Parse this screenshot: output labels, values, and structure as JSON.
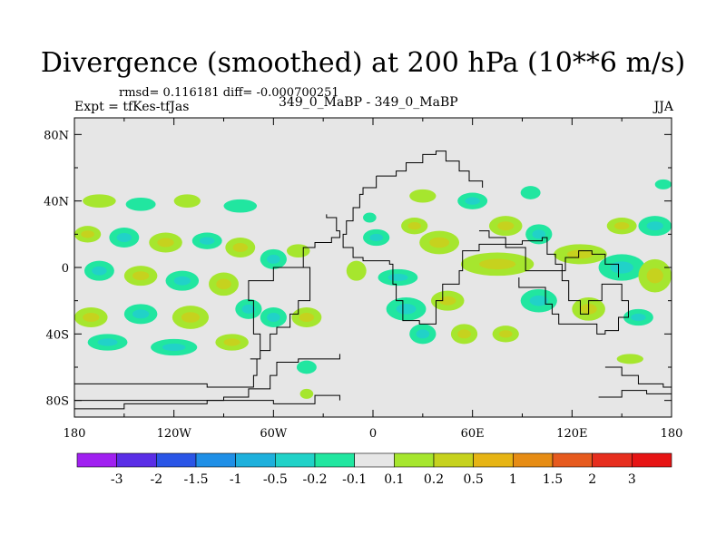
{
  "header": {
    "title": "Divergence (smoothed) at 200 hPa (10**6 m/s)",
    "stats": "rmsd= 0.116181 diff= -0.000700251",
    "expt": "Expt = tfKes-tfJas",
    "cases": "349_0_MaBP - 349_0_MaBP",
    "season": "JJA"
  },
  "chart_data": {
    "type": "heatmap",
    "title": "Divergence (smoothed) at 200 hPa (10**6 m/s)",
    "projection": "cylindrical equidistant",
    "xlim": [
      -180,
      180
    ],
    "ylim": [
      -90,
      90
    ],
    "x_ticks": [
      {
        "value": -180,
        "label": "180"
      },
      {
        "value": -120,
        "label": "120W"
      },
      {
        "value": -60,
        "label": "60W"
      },
      {
        "value": 0,
        "label": "0"
      },
      {
        "value": 60,
        "label": "60E"
      },
      {
        "value": 120,
        "label": "120E"
      },
      {
        "value": 180,
        "label": "180"
      }
    ],
    "y_ticks": [
      {
        "value": 80,
        "label": "80N"
      },
      {
        "value": 40,
        "label": "40N"
      },
      {
        "value": 0,
        "label": "0"
      },
      {
        "value": -40,
        "label": "40S"
      },
      {
        "value": -80,
        "label": "80S"
      }
    ],
    "background_color": "#e6e6e6",
    "colorbar": {
      "orientation": "horizontal",
      "labels": [
        "-3",
        "-2",
        "-1.5",
        "-1",
        "-0.5",
        "-0.2",
        "-0.1",
        "0.1",
        "0.2",
        "0.5",
        "1",
        "1.5",
        "2",
        "3"
      ],
      "colors": [
        "#a020f0",
        "#5a2ee6",
        "#2a55e6",
        "#1f8fe6",
        "#1eb0dc",
        "#21d2c8",
        "#21e6a0",
        "#e6e6e6",
        "#a6e62e",
        "#c6d21e",
        "#e6b414",
        "#e68c14",
        "#e65a1e",
        "#e62e1e",
        "#e61414"
      ]
    },
    "features": [
      {
        "lon": -165,
        "lat": 40,
        "rx": 10,
        "ry": 4,
        "level": 1
      },
      {
        "lon": -140,
        "lat": 38,
        "rx": 9,
        "ry": 4,
        "level": 0
      },
      {
        "lon": -112,
        "lat": 40,
        "rx": 8,
        "ry": 4,
        "level": 1
      },
      {
        "lon": -80,
        "lat": 37,
        "rx": 10,
        "ry": 4,
        "level": 0
      },
      {
        "lon": -172,
        "lat": 20,
        "rx": 8,
        "ry": 5,
        "level": 1
      },
      {
        "lon": -150,
        "lat": 18,
        "rx": 9,
        "ry": 6,
        "level": 0
      },
      {
        "lon": -125,
        "lat": 15,
        "rx": 10,
        "ry": 6,
        "level": 1
      },
      {
        "lon": -100,
        "lat": 16,
        "rx": 9,
        "ry": 5,
        "level": 0
      },
      {
        "lon": -80,
        "lat": 12,
        "rx": 9,
        "ry": 6,
        "level": 1
      },
      {
        "lon": -60,
        "lat": 5,
        "rx": 8,
        "ry": 6,
        "level": 0
      },
      {
        "lon": -45,
        "lat": 10,
        "rx": 7,
        "ry": 4,
        "level": 1
      },
      {
        "lon": -165,
        "lat": -2,
        "rx": 9,
        "ry": 6,
        "level": 0
      },
      {
        "lon": -140,
        "lat": -5,
        "rx": 10,
        "ry": 6,
        "level": 1
      },
      {
        "lon": -115,
        "lat": -8,
        "rx": 10,
        "ry": 6,
        "level": 0
      },
      {
        "lon": -90,
        "lat": -10,
        "rx": 9,
        "ry": 7,
        "level": 1
      },
      {
        "lon": -75,
        "lat": -25,
        "rx": 8,
        "ry": 6,
        "level": 0
      },
      {
        "lon": -170,
        "lat": -30,
        "rx": 10,
        "ry": 6,
        "level": 1
      },
      {
        "lon": -140,
        "lat": -28,
        "rx": 10,
        "ry": 6,
        "level": 0
      },
      {
        "lon": -110,
        "lat": -30,
        "rx": 11,
        "ry": 7,
        "level": 1
      },
      {
        "lon": -60,
        "lat": -30,
        "rx": 8,
        "ry": 6,
        "level": 0
      },
      {
        "lon": -40,
        "lat": -30,
        "rx": 9,
        "ry": 6,
        "level": 1
      },
      {
        "lon": -160,
        "lat": -45,
        "rx": 12,
        "ry": 5,
        "level": 0
      },
      {
        "lon": -120,
        "lat": -48,
        "rx": 14,
        "ry": 5,
        "level": 0
      },
      {
        "lon": -85,
        "lat": -45,
        "rx": 10,
        "ry": 5,
        "level": 1
      },
      {
        "lon": -40,
        "lat": -60,
        "rx": 6,
        "ry": 4,
        "level": 0
      },
      {
        "lon": -40,
        "lat": -76,
        "rx": 4,
        "ry": 3,
        "level": 1
      },
      {
        "lon": -2,
        "lat": 30,
        "rx": 4,
        "ry": 3,
        "level": 0
      },
      {
        "lon": 2,
        "lat": 18,
        "rx": 8,
        "ry": 5,
        "level": 0
      },
      {
        "lon": 25,
        "lat": 25,
        "rx": 8,
        "ry": 5,
        "level": 1
      },
      {
        "lon": 15,
        "lat": -6,
        "rx": 12,
        "ry": 5,
        "level": 0
      },
      {
        "lon": 40,
        "lat": 15,
        "rx": 12,
        "ry": 7,
        "level": 1
      },
      {
        "lon": 20,
        "lat": -25,
        "rx": 12,
        "ry": 7,
        "level": 0
      },
      {
        "lon": 45,
        "lat": -20,
        "rx": 10,
        "ry": 6,
        "level": 1
      },
      {
        "lon": 30,
        "lat": -40,
        "rx": 8,
        "ry": 6,
        "level": 0
      },
      {
        "lon": 55,
        "lat": -40,
        "rx": 8,
        "ry": 6,
        "level": 1
      },
      {
        "lon": 30,
        "lat": 43,
        "rx": 8,
        "ry": 4,
        "level": 1
      },
      {
        "lon": 60,
        "lat": 40,
        "rx": 9,
        "ry": 5,
        "level": 0
      },
      {
        "lon": 80,
        "lat": 25,
        "rx": 10,
        "ry": 6,
        "level": 1
      },
      {
        "lon": 95,
        "lat": 45,
        "rx": 6,
        "ry": 4,
        "level": 0
      },
      {
        "lon": 75,
        "lat": 2,
        "rx": 22,
        "ry": 7,
        "level": 1
      },
      {
        "lon": 100,
        "lat": 20,
        "rx": 8,
        "ry": 6,
        "level": 0
      },
      {
        "lon": 125,
        "lat": 8,
        "rx": 16,
        "ry": 6,
        "level": 1
      },
      {
        "lon": 100,
        "lat": -20,
        "rx": 11,
        "ry": 7,
        "level": 0
      },
      {
        "lon": 130,
        "lat": -25,
        "rx": 10,
        "ry": 7,
        "level": 1
      },
      {
        "lon": 150,
        "lat": 0,
        "rx": 14,
        "ry": 8,
        "level": 0
      },
      {
        "lon": 170,
        "lat": -5,
        "rx": 10,
        "ry": 10,
        "level": 1
      },
      {
        "lon": 170,
        "lat": 25,
        "rx": 10,
        "ry": 6,
        "level": 0
      },
      {
        "lon": 150,
        "lat": 25,
        "rx": 9,
        "ry": 5,
        "level": 1
      },
      {
        "lon": 175,
        "lat": 50,
        "rx": 5,
        "ry": 3,
        "level": 0
      },
      {
        "lon": 160,
        "lat": -30,
        "rx": 9,
        "ry": 5,
        "level": 0
      },
      {
        "lon": 155,
        "lat": -55,
        "rx": 8,
        "ry": 3,
        "level": 1
      },
      {
        "lon": 80,
        "lat": -40,
        "rx": 8,
        "ry": 5,
        "level": 1
      },
      {
        "lon": -10,
        "lat": -2,
        "rx": 6,
        "ry": 6,
        "level": 1
      }
    ],
    "coastlines": [
      [
        [
          -180,
          -70
        ],
        [
          -120,
          -70
        ],
        [
          -100,
          -72
        ],
        [
          -80,
          -72
        ],
        [
          -72,
          -65
        ],
        [
          -70,
          -55
        ],
        [
          -68,
          -40
        ],
        [
          -72,
          -20
        ],
        [
          -75,
          -8
        ],
        [
          -60,
          0
        ],
        [
          -48,
          0
        ],
        [
          -38,
          -8
        ],
        [
          -38,
          -20
        ],
        [
          -45,
          -28
        ],
        [
          -50,
          -36
        ],
        [
          -58,
          -40
        ],
        [
          -62,
          -50
        ],
        [
          -68,
          -55
        ],
        [
          -74,
          -55
        ]
      ],
      [
        [
          -180,
          -80
        ],
        [
          -160,
          -80
        ],
        [
          -145,
          -80
        ],
        [
          -110,
          -80
        ],
        [
          -90,
          -78
        ],
        [
          -75,
          -73
        ],
        [
          -62,
          -65
        ],
        [
          -58,
          -57
        ],
        [
          -45,
          -55
        ],
        [
          -32,
          -55
        ],
        [
          -20,
          -52
        ]
      ],
      [
        [
          -180,
          -85
        ],
        [
          -150,
          -82
        ],
        [
          -100,
          -80
        ],
        [
          -60,
          -82
        ],
        [
          -35,
          -77
        ],
        [
          -20,
          -80
        ]
      ],
      [
        [
          -48,
          0
        ],
        [
          -42,
          12
        ],
        [
          -35,
          15
        ],
        [
          -25,
          18
        ],
        [
          -20,
          22
        ],
        [
          -22,
          30
        ],
        [
          -28,
          32
        ]
      ],
      [
        [
          2,
          55
        ],
        [
          2,
          48
        ],
        [
          -6,
          44
        ],
        [
          -8,
          36
        ],
        [
          -12,
          28
        ],
        [
          -16,
          20
        ],
        [
          -18,
          12
        ],
        [
          -12,
          6
        ],
        [
          -6,
          4
        ],
        [
          6,
          4
        ],
        [
          10,
          2
        ],
        [
          12,
          -10
        ],
        [
          14,
          -20
        ],
        [
          18,
          -32
        ],
        [
          28,
          -34
        ],
        [
          38,
          -20
        ],
        [
          42,
          -10
        ],
        [
          52,
          -2
        ],
        [
          54,
          10
        ],
        [
          64,
          14
        ],
        [
          76,
          14
        ],
        [
          90,
          16
        ],
        [
          102,
          18
        ],
        [
          105,
          8
        ],
        [
          110,
          2
        ],
        [
          114,
          -8
        ],
        [
          118,
          -20
        ],
        [
          125,
          -28
        ],
        [
          130,
          -20
        ],
        [
          138,
          -10
        ],
        [
          150,
          -20
        ],
        [
          154,
          -30
        ],
        [
          148,
          -38
        ],
        [
          140,
          -40
        ],
        [
          135,
          -34
        ],
        [
          118,
          -34
        ],
        [
          112,
          -28
        ],
        [
          108,
          -22
        ],
        [
          104,
          -12
        ],
        [
          96,
          -12
        ],
        [
          88,
          -6
        ]
      ],
      [
        [
          2,
          55
        ],
        [
          14,
          58
        ],
        [
          20,
          63
        ],
        [
          30,
          68
        ],
        [
          38,
          70
        ],
        [
          44,
          64
        ],
        [
          52,
          58
        ],
        [
          58,
          52
        ],
        [
          66,
          48
        ]
      ],
      [
        [
          64,
          22
        ],
        [
          70,
          18
        ],
        [
          80,
          12
        ],
        [
          92,
          -2
        ],
        [
          104,
          -2
        ],
        [
          116,
          6
        ],
        [
          124,
          10
        ],
        [
          132,
          8
        ],
        [
          140,
          2
        ],
        [
          148,
          -6
        ]
      ],
      [
        [
          140,
          -60
        ],
        [
          150,
          -65
        ],
        [
          160,
          -70
        ],
        [
          175,
          -72
        ],
        [
          180,
          -73
        ]
      ],
      [
        [
          136,
          -78
        ],
        [
          150,
          -74
        ],
        [
          165,
          -76
        ],
        [
          180,
          -80
        ]
      ]
    ]
  }
}
